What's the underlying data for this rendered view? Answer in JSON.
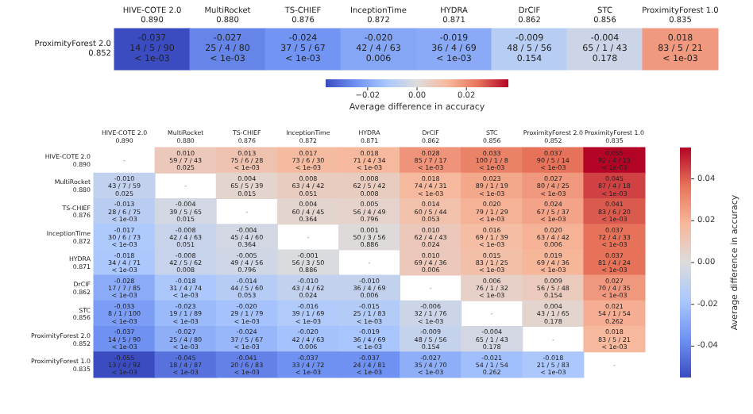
{
  "chart_data": [
    {
      "type": "heatmap",
      "categories": [
        "HIVE-COTE 2.0\n0.890",
        "MultiRocket\n0.880",
        "TS-CHIEF\n0.876",
        "InceptionTime\n0.872",
        "HYDRA\n0.871",
        "DrCIF\n0.862",
        "STC\n0.856",
        "ProximityForest 1.0\n0.835"
      ],
      "y_categories": [
        "ProximityForest 2.0\n0.852"
      ],
      "cells": [
        [
          -0.037,
          -0.027,
          -0.024,
          -0.02,
          -0.019,
          -0.009,
          -0.004,
          0.018
        ]
      ],
      "cell_labels": [
        [
          "-0.037\n14 / 5 / 90\n< 1e-03",
          "-0.027\n25 / 4 / 80\n< 1e-03",
          "-0.024\n37 / 5 / 67\n< 1e-03",
          "-0.020\n42 / 4 / 63\n0.006",
          "-0.019\n36 / 4 / 69\n< 1e-03",
          "-0.009\n48 / 5 / 56\n0.154",
          "-0.004\n65 / 1 / 43\n0.178",
          "0.018\n83 / 5 / 21\n< 1e-03"
        ]
      ],
      "clabel": "Average difference in accuracy",
      "clim": [
        -0.037,
        0.037
      ],
      "cticks": [
        {
          "value": -0.02,
          "label": "−0.02"
        },
        {
          "value": 0,
          "label": "0.00"
        },
        {
          "value": 0.02,
          "label": "0.02"
        }
      ]
    },
    {
      "type": "heatmap",
      "categories": [
        "HIVE-COTE 2.0\n0.890",
        "MultiRocket\n0.880",
        "TS-CHIEF\n0.876",
        "InceptionTime\n0.872",
        "HYDRA\n0.871",
        "DrCIF\n0.862",
        "STC\n0.856",
        "ProximityForest 2.0\n0.852",
        "ProximityForest 1.0\n0.835"
      ],
      "y_categories": [
        "HIVE-COTE 2.0\n0.890",
        "MultiRocket\n0.880",
        "TS-CHIEF\n0.876",
        "InceptionTime\n0.872",
        "HYDRA\n0.871",
        "DrCIF\n0.862",
        "STC\n0.856",
        "ProximityForest 2.0\n0.852",
        "ProximityForest 1.0\n0.835"
      ],
      "cells": [
        [
          null,
          0.01,
          0.013,
          0.017,
          0.018,
          0.028,
          0.033,
          0.037,
          0.055
        ],
        [
          -0.01,
          null,
          0.004,
          0.008,
          0.008,
          0.018,
          0.023,
          0.027,
          0.045
        ],
        [
          -0.013,
          -0.004,
          null,
          0.004,
          0.005,
          0.014,
          0.02,
          0.024,
          0.041
        ],
        [
          -0.017,
          -0.008,
          -0.004,
          null,
          0.001,
          0.01,
          0.016,
          0.02,
          0.037
        ],
        [
          -0.018,
          -0.008,
          -0.005,
          -0.001,
          null,
          0.01,
          0.015,
          0.019,
          0.037
        ],
        [
          -0.028,
          -0.018,
          -0.014,
          -0.01,
          -0.01,
          null,
          0.006,
          0.009,
          0.027
        ],
        [
          -0.033,
          -0.023,
          -0.02,
          -0.016,
          -0.015,
          -0.006,
          null,
          0.004,
          0.021
        ],
        [
          -0.037,
          -0.027,
          -0.024,
          -0.02,
          -0.019,
          -0.009,
          -0.004,
          null,
          0.018
        ],
        [
          -0.055,
          -0.045,
          -0.041,
          -0.037,
          -0.037,
          -0.027,
          -0.021,
          -0.018,
          null
        ]
      ],
      "cell_labels": [
        [
          "-",
          "0.010\n59 / 7 / 43\n0.025",
          "0.013\n75 / 6 / 28\n< 1e-03",
          "0.017\n73 / 6 / 30\n< 1e-03",
          "0.018\n71 / 4 / 34\n< 1e-03",
          "0.028\n85 / 7 / 17\n< 1e-03",
          "0.033\n100 / 1 / 8\n< 1e-03",
          "0.037\n90 / 5 / 14\n< 1e-03",
          "0.055\n92 / 4 / 13\n< 1e-03"
        ],
        [
          "-0.010\n43 / 7 / 59\n0.025",
          "-",
          "0.004\n65 / 5 / 39\n0.015",
          "0.008\n63 / 4 / 42\n0.051",
          "0.008\n62 / 5 / 42\n0.008",
          "0.018\n74 / 4 / 31\n< 1e-03",
          "0.023\n89 / 1 / 19\n< 1e-03",
          "0.027\n80 / 4 / 25\n< 1e-03",
          "0.045\n87 / 4 / 18\n< 1e-03"
        ],
        [
          "-0.013\n28 / 6 / 75\n< 1e-03",
          "-0.004\n39 / 5 / 65\n0.015",
          "-",
          "0.004\n60 / 4 / 45\n0.364",
          "0.005\n56 / 4 / 49\n0.796",
          "0.014\n60 / 5 / 44\n0.053",
          "0.020\n79 / 1 / 29\n< 1e-03",
          "0.024\n67 / 5 / 37\n< 1e-03",
          "0.041\n83 / 6 / 20\n< 1e-03"
        ],
        [
          "-0.017\n30 / 6 / 73\n< 1e-03",
          "-0.008\n42 / 4 / 63\n0.051",
          "-0.004\n45 / 4 / 60\n0.364",
          "-",
          "0.001\n50 / 3 / 56\n0.886",
          "0.010\n62 / 4 / 43\n0.024",
          "0.016\n69 / 1 / 39\n< 1e-03",
          "0.020\n63 / 4 / 42\n0.006",
          "0.037\n72 / 4 / 33\n< 1e-03"
        ],
        [
          "-0.018\n34 / 4 / 71\n< 1e-03",
          "-0.008\n42 / 5 / 62\n0.008",
          "-0.005\n49 / 4 / 56\n0.796",
          "-0.001\n56 / 3 / 50\n0.886",
          "-",
          "0.010\n69 / 4 / 36\n0.006",
          "0.015\n83 / 1 / 25\n< 1e-03",
          "0.019\n69 / 4 / 36\n< 1e-03",
          "0.037\n81 / 4 / 24\n< 1e-03"
        ],
        [
          "-0.028\n17 / 7 / 85\n< 1e-03",
          "-0.018\n31 / 4 / 74\n< 1e-03",
          "-0.014\n44 / 5 / 60\n0.053",
          "-0.010\n43 / 4 / 62\n0.024",
          "-0.010\n36 / 4 / 69\n0.006",
          "-",
          "0.006\n76 / 1 / 32\n< 1e-03",
          "0.009\n56 / 5 / 48\n0.154",
          "0.027\n70 / 4 / 35\n< 1e-03"
        ],
        [
          "-0.033\n8 / 1 / 100\n< 1e-03",
          "-0.023\n19 / 1 / 89\n< 1e-03",
          "-0.020\n29 / 1 / 79\n< 1e-03",
          "-0.016\n39 / 1 / 69\n< 1e-03",
          "-0.015\n25 / 1 / 83\n< 1e-03",
          "-0.006\n32 / 1 / 76\n< 1e-03",
          "-",
          "0.004\n43 / 1 / 65\n0.178",
          "0.021\n54 / 1 / 54\n0.262"
        ],
        [
          "-0.037\n14 / 5 / 90\n< 1e-03",
          "-0.027\n25 / 4 / 80\n< 1e-03",
          "-0.024\n37 / 5 / 67\n< 1e-03",
          "-0.020\n42 / 4 / 63\n0.006",
          "-0.019\n36 / 4 / 69\n< 1e-03",
          "-0.009\n48 / 5 / 56\n0.154",
          "-0.004\n65 / 1 / 43\n0.178",
          "-",
          "0.018\n83 / 5 / 21\n< 1e-03"
        ],
        [
          "-0.055\n13 / 4 / 92\n< 1e-03",
          "-0.045\n18 / 4 / 87\n< 1e-03",
          "-0.041\n20 / 6 / 83\n< 1e-03",
          "-0.037\n33 / 4 / 72\n< 1e-03",
          "-0.037\n24 / 4 / 81\n< 1e-03",
          "-0.027\n35 / 4 / 70\n< 1e-03",
          "-0.021\n54 / 1 / 54\n0.262",
          "-0.018\n21 / 5 / 83\n< 1e-03",
          "-"
        ]
      ],
      "clabel": "Average difference in accuracy",
      "clim": [
        -0.055,
        0.055
      ],
      "cticks": [
        {
          "value": -0.04,
          "label": "-0.04"
        },
        {
          "value": -0.02,
          "label": "-0.02"
        },
        {
          "value": 0,
          "label": "0.00"
        },
        {
          "value": 0.02,
          "label": "0.02"
        },
        {
          "value": 0.04,
          "label": "0.04"
        }
      ]
    }
  ]
}
